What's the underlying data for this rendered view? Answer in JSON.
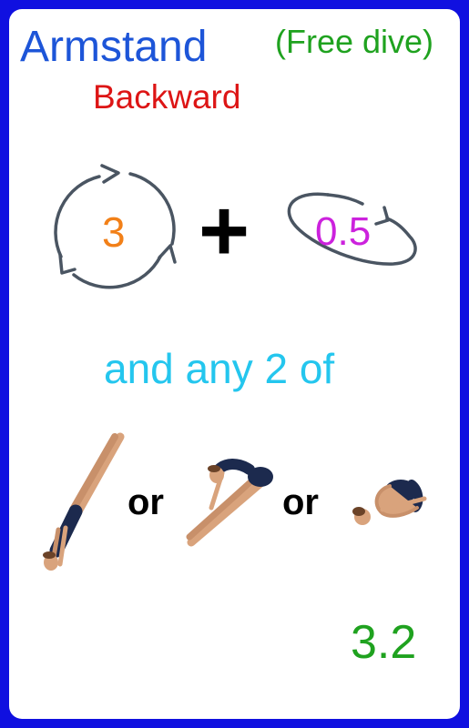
{
  "card": {
    "title": "Armstand",
    "direction": "Backward",
    "dive_type": "(Free dive)",
    "rotation_value": "3",
    "plus": "+",
    "twist_value": "0.5",
    "phrase": "and any 2 of",
    "or_label": "or",
    "degree_of_difficulty": "3.2"
  },
  "icons": {
    "rotation": "circular-arrows-icon",
    "twist": "twist-ellipse-icon",
    "positions": [
      "straight-position-diver",
      "pike-position-diver",
      "tuck-position-diver"
    ]
  },
  "colors": {
    "border": "#1010e0",
    "title": "#1d55d8",
    "direction": "#dd1515",
    "dive_type": "#1fa21f",
    "rotation": "#f28018",
    "twist": "#cc22dd",
    "phrase": "#24c6ee",
    "degree_of_difficulty": "#1fa21f"
  }
}
